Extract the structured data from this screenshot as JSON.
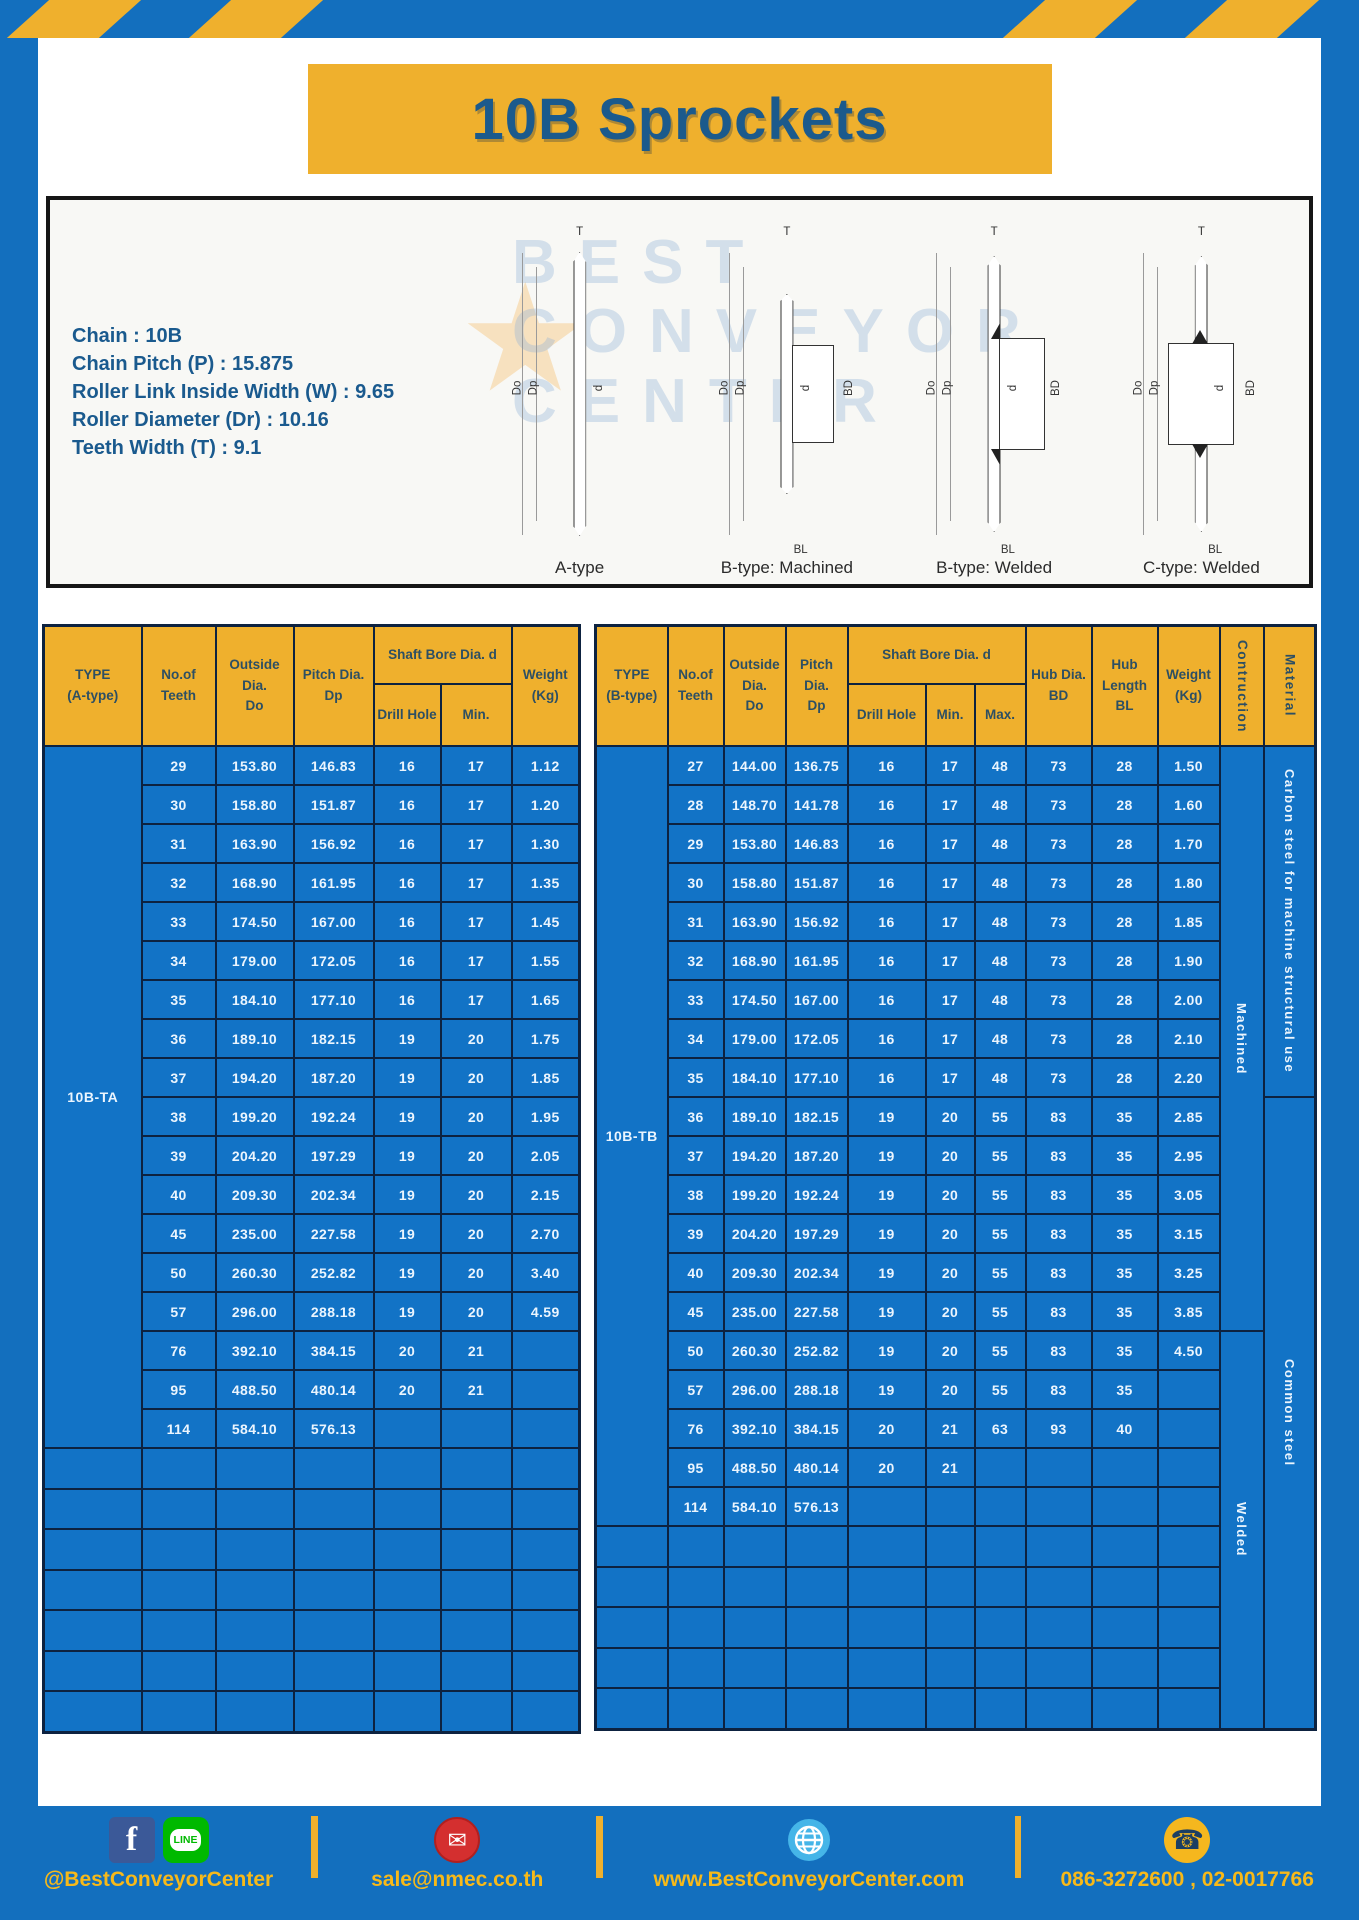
{
  "title": "10B Sprockets",
  "specs": [
    "Chain  :  10B",
    "Chain Pitch (P)  :  15.875",
    "Roller Link Inside Width (W) : 9.65",
    "Roller Diameter (Dr)  : 10.16",
    "Teeth Width (T)  :  9.1"
  ],
  "watermark": {
    "lines": "BEST\nCONVEYOR\nCENTER",
    "star": "★"
  },
  "diagrams": [
    {
      "caption": "A-type",
      "variant": "a",
      "dims": [
        "T",
        "Do",
        "Dp",
        "d"
      ]
    },
    {
      "caption": "B-type: Machined",
      "variant": "bm",
      "dims": [
        "T",
        "Do",
        "Dp",
        "d",
        "BD",
        "BL"
      ]
    },
    {
      "caption": "B-type: Welded",
      "variant": "bw",
      "dims": [
        "T",
        "Do",
        "Dp",
        "d",
        "BD",
        "BL"
      ]
    },
    {
      "caption": "C-type: Welded",
      "variant": "cw",
      "dims": [
        "T",
        "Do",
        "Dp",
        "d",
        "BD",
        "BL"
      ]
    }
  ],
  "table_a": {
    "header_row1": [
      {
        "label": "TYPE\n(A-type)",
        "rowspan": 2
      },
      {
        "label": "No.of\nTeeth",
        "rowspan": 2
      },
      {
        "label": "Outside\nDia.\nDo",
        "rowspan": 2
      },
      {
        "label": "Pitch Dia.\nDp",
        "rowspan": 2
      },
      {
        "label": "Shaft Bore Dia. d",
        "colspan": 2
      },
      {
        "label": "Weight\n(Kg)",
        "rowspan": 2
      }
    ],
    "header_row2": [
      "Drill Hole",
      "Min."
    ],
    "type_label": "10B-TA",
    "rows": [
      [
        "29",
        "153.80",
        "146.83",
        "16",
        "17",
        "1.12"
      ],
      [
        "30",
        "158.80",
        "151.87",
        "16",
        "17",
        "1.20"
      ],
      [
        "31",
        "163.90",
        "156.92",
        "16",
        "17",
        "1.30"
      ],
      [
        "32",
        "168.90",
        "161.95",
        "16",
        "17",
        "1.35"
      ],
      [
        "33",
        "174.50",
        "167.00",
        "16",
        "17",
        "1.45"
      ],
      [
        "34",
        "179.00",
        "172.05",
        "16",
        "17",
        "1.55"
      ],
      [
        "35",
        "184.10",
        "177.10",
        "16",
        "17",
        "1.65"
      ],
      [
        "36",
        "189.10",
        "182.15",
        "19",
        "20",
        "1.75"
      ],
      [
        "37",
        "194.20",
        "187.20",
        "19",
        "20",
        "1.85"
      ],
      [
        "38",
        "199.20",
        "192.24",
        "19",
        "20",
        "1.95"
      ],
      [
        "39",
        "204.20",
        "197.29",
        "19",
        "20",
        "2.05"
      ],
      [
        "40",
        "209.30",
        "202.34",
        "19",
        "20",
        "2.15"
      ],
      [
        "45",
        "235.00",
        "227.58",
        "19",
        "20",
        "2.70"
      ],
      [
        "50",
        "260.30",
        "252.82",
        "19",
        "20",
        "3.40"
      ],
      [
        "57",
        "296.00",
        "288.18",
        "19",
        "20",
        "4.59"
      ],
      [
        "76",
        "392.10",
        "384.15",
        "20",
        "21",
        ""
      ],
      [
        "95",
        "488.50",
        "480.14",
        "20",
        "21",
        ""
      ],
      [
        "114",
        "584.10",
        "576.13",
        "",
        "",
        ""
      ]
    ],
    "empty_rows": 7
  },
  "table_b": {
    "header_row1": [
      {
        "label": "TYPE\n(B-type)",
        "rowspan": 2
      },
      {
        "label": "No.of\nTeeth",
        "rowspan": 2
      },
      {
        "label": "Outside\nDia.\nDo",
        "rowspan": 2
      },
      {
        "label": "Pitch Dia.\nDp",
        "rowspan": 2
      },
      {
        "label": "Shaft Bore Dia. d",
        "colspan": 3
      },
      {
        "label": "Hub Dia.\nBD",
        "rowspan": 2
      },
      {
        "label": "Hub\nLength\nBL",
        "rowspan": 2
      },
      {
        "label": "Weight\n(Kg)",
        "rowspan": 2
      },
      {
        "label": "Contruction",
        "rowspan": 2,
        "vert": true
      },
      {
        "label": "Material",
        "rowspan": 2,
        "vert": true
      }
    ],
    "header_row2": [
      "Drill Hole",
      "Min.",
      "Max."
    ],
    "type_label": "10B-TB",
    "rows": [
      [
        "27",
        "144.00",
        "136.75",
        "16",
        "17",
        "48",
        "73",
        "28",
        "1.50"
      ],
      [
        "28",
        "148.70",
        "141.78",
        "16",
        "17",
        "48",
        "73",
        "28",
        "1.60"
      ],
      [
        "29",
        "153.80",
        "146.83",
        "16",
        "17",
        "48",
        "73",
        "28",
        "1.70"
      ],
      [
        "30",
        "158.80",
        "151.87",
        "16",
        "17",
        "48",
        "73",
        "28",
        "1.80"
      ],
      [
        "31",
        "163.90",
        "156.92",
        "16",
        "17",
        "48",
        "73",
        "28",
        "1.85"
      ],
      [
        "32",
        "168.90",
        "161.95",
        "16",
        "17",
        "48",
        "73",
        "28",
        "1.90"
      ],
      [
        "33",
        "174.50",
        "167.00",
        "16",
        "17",
        "48",
        "73",
        "28",
        "2.00"
      ],
      [
        "34",
        "179.00",
        "172.05",
        "16",
        "17",
        "48",
        "73",
        "28",
        "2.10"
      ],
      [
        "35",
        "184.10",
        "177.10",
        "16",
        "17",
        "48",
        "73",
        "28",
        "2.20"
      ],
      [
        "36",
        "189.10",
        "182.15",
        "19",
        "20",
        "55",
        "83",
        "35",
        "2.85"
      ],
      [
        "37",
        "194.20",
        "187.20",
        "19",
        "20",
        "55",
        "83",
        "35",
        "2.95"
      ],
      [
        "38",
        "199.20",
        "192.24",
        "19",
        "20",
        "55",
        "83",
        "35",
        "3.05"
      ],
      [
        "39",
        "204.20",
        "197.29",
        "19",
        "20",
        "55",
        "83",
        "35",
        "3.15"
      ],
      [
        "40",
        "209.30",
        "202.34",
        "19",
        "20",
        "55",
        "83",
        "35",
        "3.25"
      ],
      [
        "45",
        "235.00",
        "227.58",
        "19",
        "20",
        "55",
        "83",
        "35",
        "3.85"
      ],
      [
        "50",
        "260.30",
        "252.82",
        "19",
        "20",
        "55",
        "83",
        "35",
        "4.50"
      ],
      [
        "57",
        "296.00",
        "288.18",
        "19",
        "20",
        "55",
        "83",
        "35",
        ""
      ],
      [
        "76",
        "392.10",
        "384.15",
        "20",
        "21",
        "63",
        "93",
        "40",
        ""
      ],
      [
        "95",
        "488.50",
        "480.14",
        "20",
        "21",
        "",
        "",
        "",
        ""
      ],
      [
        "114",
        "584.10",
        "576.13",
        "",
        "",
        "",
        "",
        "",
        ""
      ]
    ],
    "empty_rows": 5,
    "span_cols": [
      {
        "name": "construction",
        "spans": [
          {
            "label": "Machined",
            "start": 0,
            "rows": 15
          },
          {
            "label": "Welded",
            "start": 15,
            "rows": 10
          }
        ]
      },
      {
        "name": "material",
        "spans": [
          {
            "label": "Carbon steel for  machine structural use",
            "start": 0,
            "rows": 9
          },
          {
            "label": "Common steel",
            "start": 9,
            "rows": 16
          }
        ]
      }
    ]
  },
  "footer": {
    "groups": [
      {
        "cls": "g1",
        "icons": [
          {
            "name": "facebook-icon",
            "glyph": "f"
          },
          {
            "name": "line-icon",
            "glyph": "LINE"
          }
        ],
        "label": "@BestConveyorCenter"
      },
      {
        "cls": "g2",
        "icons": [
          {
            "name": "mail-icon",
            "glyph": "✉"
          }
        ],
        "label": "sale@nmec.co.th"
      },
      {
        "cls": "g3",
        "icons": [
          {
            "name": "globe-icon",
            "glyph": ""
          }
        ],
        "label": "www.BestConveyorCenter.com"
      },
      {
        "cls": "g4",
        "icons": [
          {
            "name": "phone-icon",
            "glyph": "☎"
          }
        ],
        "label": "086-3272600 , 02-0017766"
      }
    ]
  }
}
